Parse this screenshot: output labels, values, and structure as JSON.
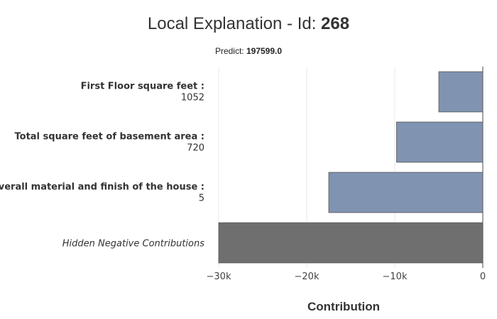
{
  "header": {
    "title_prefix": "Local Explanation - Id: ",
    "title_id": "268",
    "predict_label": "Predict: ",
    "predict_value": "197599.0"
  },
  "chart_data": {
    "type": "bar",
    "orientation": "horizontal",
    "categories": [
      {
        "name": "First Floor square feet :",
        "value_label": "1052",
        "style": "bold"
      },
      {
        "name": "Total square feet of basement area :",
        "value_label": "720",
        "style": "bold"
      },
      {
        "name": "Overall material and finish of the house :",
        "value_label": "5",
        "style": "bold"
      },
      {
        "name": "Hidden Negative Contributions",
        "value_label": "",
        "style": "italic"
      }
    ],
    "values": [
      -5000,
      -9800,
      -17500,
      -30000
    ],
    "colors": [
      "#8093b0",
      "#8093b0",
      "#8093b0",
      "#6e6f6e"
    ],
    "xlabel": "Contribution",
    "xlim": [
      -30000,
      0
    ],
    "xticks": [
      {
        "value": -30000,
        "label": "−30k"
      },
      {
        "value": -20000,
        "label": "−20k"
      },
      {
        "value": -10000,
        "label": "−10k"
      },
      {
        "value": 0,
        "label": "0"
      }
    ],
    "grid": true
  }
}
